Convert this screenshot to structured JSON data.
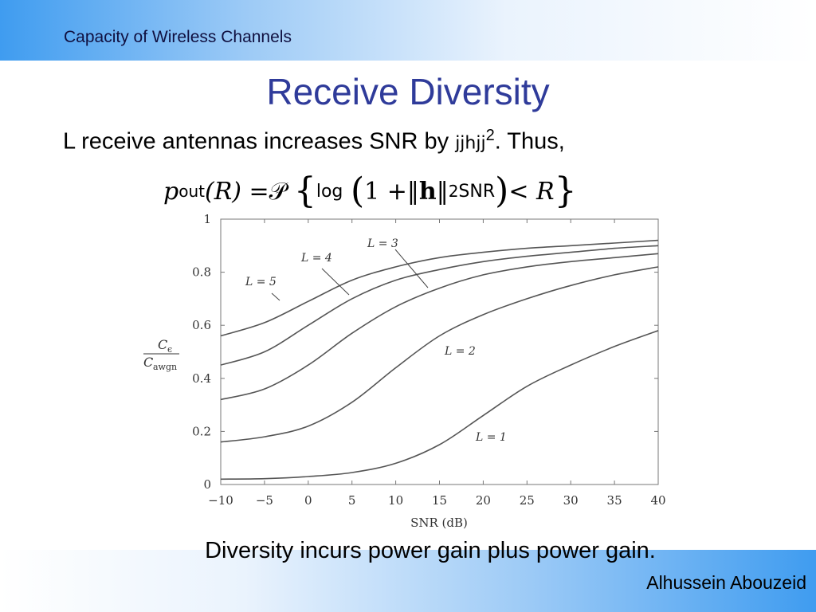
{
  "header": {
    "band_title": "Capacity of Wireless Channels"
  },
  "slide": {
    "title": "Receive Diversity",
    "intro_text": "L receive antennas increases SNR by ",
    "intro_norm": "jjhjj",
    "intro_sup": "2",
    "intro_end": ". Thus,",
    "formula": {
      "p": "p",
      "out": "out",
      "lhs_arg": "(R) = ",
      "P": "𝒫",
      "lbrace": "{",
      "log": "log",
      "lparen": "(",
      "one_plus": "1 + ",
      "norm_left": "‖",
      "h": "h",
      "norm_right": "‖",
      "sq": "2",
      "snr": "SNR",
      "rparen": ")",
      "lt_r": " < R",
      "rbrace": "}"
    },
    "caption": "Diversity incurs power gain plus power gain.",
    "author": "Alhussein Abouzeid"
  },
  "colors": {
    "title": "#2f3b9a",
    "band_light": "#eaf3fd",
    "band_dark": "#3f9cf0",
    "curve": "#555555",
    "axis": "#777777"
  },
  "chart_data": {
    "type": "line",
    "xlabel": "SNR (dB)",
    "ylabel_num": "C",
    "ylabel_num_sub": "ϵ",
    "ylabel_den": "C",
    "ylabel_den_sub": "awgn",
    "xlim": [
      -10,
      40
    ],
    "ylim": [
      0,
      1
    ],
    "xticks": [
      "−10",
      "−5",
      "0",
      "5",
      "10",
      "15",
      "20",
      "25",
      "30",
      "35",
      "40"
    ],
    "yticks": [
      "0",
      "0.2",
      "0.4",
      "0.6",
      "0.8",
      "1"
    ],
    "x": [
      -10,
      -5,
      0,
      5,
      10,
      15,
      20,
      25,
      30,
      35,
      40
    ],
    "series": [
      {
        "name": "L = 1",
        "values": [
          0.02,
          0.022,
          0.03,
          0.045,
          0.08,
          0.15,
          0.26,
          0.37,
          0.45,
          0.52,
          0.58
        ]
      },
      {
        "name": "L = 2",
        "values": [
          0.16,
          0.18,
          0.22,
          0.31,
          0.44,
          0.56,
          0.64,
          0.7,
          0.75,
          0.79,
          0.82
        ]
      },
      {
        "name": "L = 3",
        "values": [
          0.32,
          0.36,
          0.45,
          0.57,
          0.67,
          0.74,
          0.79,
          0.82,
          0.84,
          0.855,
          0.87
        ]
      },
      {
        "name": "L = 4",
        "values": [
          0.45,
          0.5,
          0.6,
          0.7,
          0.77,
          0.81,
          0.84,
          0.86,
          0.875,
          0.89,
          0.9
        ]
      },
      {
        "name": "L = 5",
        "values": [
          0.56,
          0.61,
          0.69,
          0.77,
          0.82,
          0.855,
          0.875,
          0.89,
          0.9,
          0.91,
          0.92
        ]
      }
    ],
    "annotations": [
      "L = 1",
      "L = 2",
      "L = 3",
      "L = 4",
      "L = 5"
    ]
  }
}
